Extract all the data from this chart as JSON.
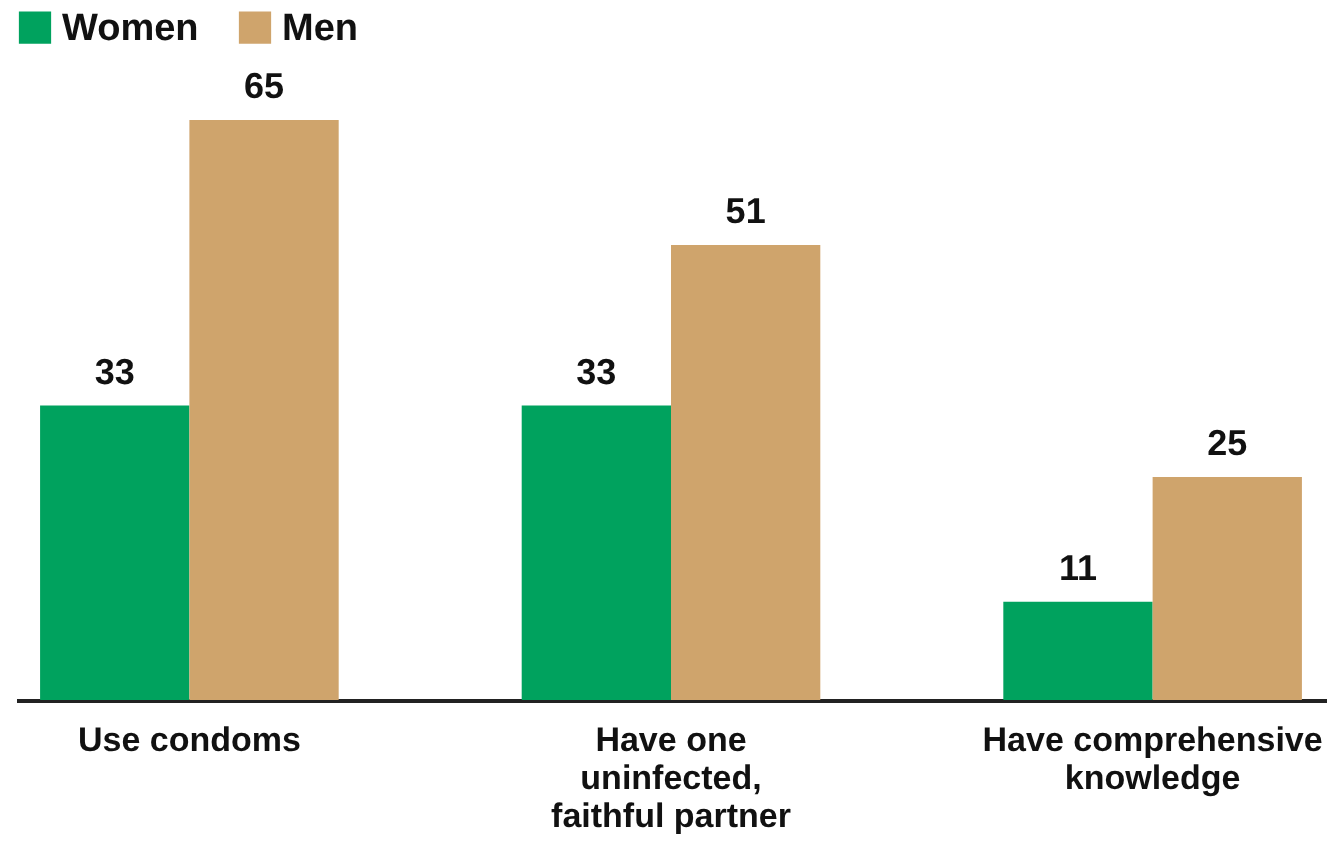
{
  "chart_data": {
    "type": "bar",
    "categories": [
      "Use condoms",
      "Have one\nuninfected,\nfaithful partner",
      "Have comprehensive\nknowledge"
    ],
    "series": [
      {
        "name": "Women",
        "color": "#00a25e",
        "values": [
          33,
          33,
          11
        ]
      },
      {
        "name": "Men",
        "color": "#cfa46c",
        "values": [
          65,
          51,
          25
        ]
      }
    ],
    "data_labels": true,
    "legend": "top"
  }
}
